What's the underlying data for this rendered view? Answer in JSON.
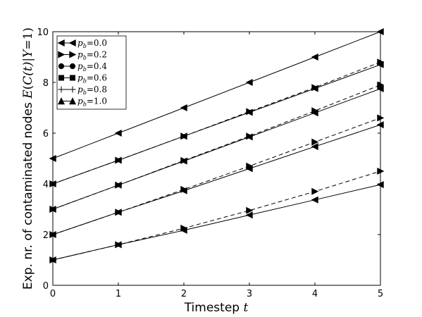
{
  "chart_data": {
    "type": "line",
    "xlabel": "Timestep t",
    "ylabel": "Exp. nr. of contaminated nodes E(C(t)|Y=1)",
    "xlim": [
      0,
      5
    ],
    "ylim": [
      0,
      10
    ],
    "x_ticks": [
      "0",
      "1",
      "2",
      "3",
      "4",
      "5"
    ],
    "y_ticks": [
      "0",
      "2",
      "4",
      "6",
      "8",
      "10"
    ],
    "grid": false,
    "legend_position": "top-left",
    "legend_labels": [
      "p_b=0.0",
      "p_b=0.2",
      "p_b=0.4",
      "p_b=0.6",
      "p_b=0.8",
      "p_b=1.0"
    ],
    "x": [
      0,
      1,
      2,
      3,
      4,
      5
    ],
    "series": [
      {
        "name": "p_b=0.0",
        "marker": "triangle-left",
        "lines": [
          {
            "style": "solid",
            "values": [
              1.0,
              1.6,
              2.17,
              2.77,
              3.37,
              3.97
            ]
          },
          {
            "style": "solid",
            "values": [
              2.0,
              2.88,
              3.73,
              4.6,
              5.47,
              6.33
            ]
          },
          {
            "style": "solid",
            "values": [
              3.0,
              3.95,
              4.9,
              5.85,
              6.8,
              7.75
            ]
          },
          {
            "style": "solid",
            "values": [
              4.0,
              4.93,
              5.88,
              6.82,
              7.76,
              8.7
            ]
          },
          {
            "style": "solid",
            "values": [
              5.0,
              6.0,
              7.0,
              8.0,
              9.0,
              10.0
            ]
          }
        ]
      },
      {
        "name": "p_b=0.2",
        "marker": "triangle-right",
        "lines": [
          {
            "style": "dashed",
            "values": [
              1.0,
              1.6,
              2.25,
              2.95,
              3.7,
              4.5
            ]
          },
          {
            "style": "dashed",
            "values": [
              2.0,
              2.88,
              3.78,
              4.7,
              5.65,
              6.6
            ]
          },
          {
            "style": "dashed",
            "values": [
              3.0,
              3.95,
              4.92,
              5.88,
              6.88,
              7.9
            ]
          },
          {
            "style": "dashed",
            "values": [
              4.0,
              4.93,
              5.88,
              6.85,
              7.8,
              8.8
            ]
          }
        ]
      },
      {
        "name": "p_b=0.4",
        "marker": "circle",
        "lines": []
      },
      {
        "name": "p_b=0.6",
        "marker": "square",
        "lines": []
      },
      {
        "name": "p_b=0.8",
        "marker": "plus",
        "lines": []
      },
      {
        "name": "p_b=1.0",
        "marker": "triangle-up",
        "lines": []
      }
    ]
  },
  "axis_label_parts": {
    "x_text": "Timestep ",
    "x_var": "t",
    "y_text": "Exp. nr. of contaminated nodes ",
    "y_math_E": "E",
    "y_math_open": "(",
    "y_math_C": "C",
    "y_math_t": "(t)",
    "y_math_bar": "|",
    "y_math_Y": "Y",
    "y_math_eq": "=1)"
  },
  "legend_entries": [
    {
      "sym": "p",
      "sub": "b",
      "val": "=0.0"
    },
    {
      "sym": "p",
      "sub": "b",
      "val": "=0.2"
    },
    {
      "sym": "p",
      "sub": "b",
      "val": "=0.4"
    },
    {
      "sym": "p",
      "sub": "b",
      "val": "=0.6"
    },
    {
      "sym": "p",
      "sub": "b",
      "val": "=0.8"
    },
    {
      "sym": "p",
      "sub": "b",
      "val": "=1.0"
    }
  ]
}
